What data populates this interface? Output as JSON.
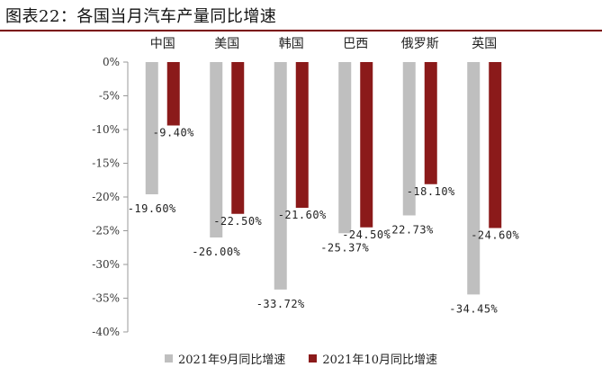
{
  "title": "图表22：各国当月汽车产量同比增速",
  "colors": {
    "sep": "#BFBFBF",
    "oct": "#8B1A1A",
    "title_rule": "#7A0000"
  },
  "chart_data": {
    "type": "bar",
    "categories": [
      "中国",
      "美国",
      "韩国",
      "巴西",
      "俄罗斯",
      "英国"
    ],
    "series": [
      {
        "name": "2021年9月同比增速",
        "values": [
          -19.6,
          -26.0,
          -33.72,
          -25.37,
          -22.73,
          -34.45
        ],
        "labels": [
          "-19.60%",
          "-26.00%",
          "-33.72%",
          "-25.37%",
          "-22.73%",
          "-34.45%"
        ]
      },
      {
        "name": "2021年10月同比增速",
        "values": [
          -9.4,
          -22.5,
          -21.6,
          -24.5,
          -18.1,
          -24.6
        ],
        "labels": [
          "-9.40%",
          "-22.50%",
          "-21.60%",
          "-24.50%",
          "-18.10%",
          "-24.60%"
        ]
      }
    ],
    "ylim": [
      -40,
      0
    ],
    "yticks": [
      "0%",
      "-5%",
      "-10%",
      "-15%",
      "-20%",
      "-25%",
      "-30%",
      "-35%",
      "-40%"
    ],
    "legend_position": "bottom",
    "grid": false
  }
}
